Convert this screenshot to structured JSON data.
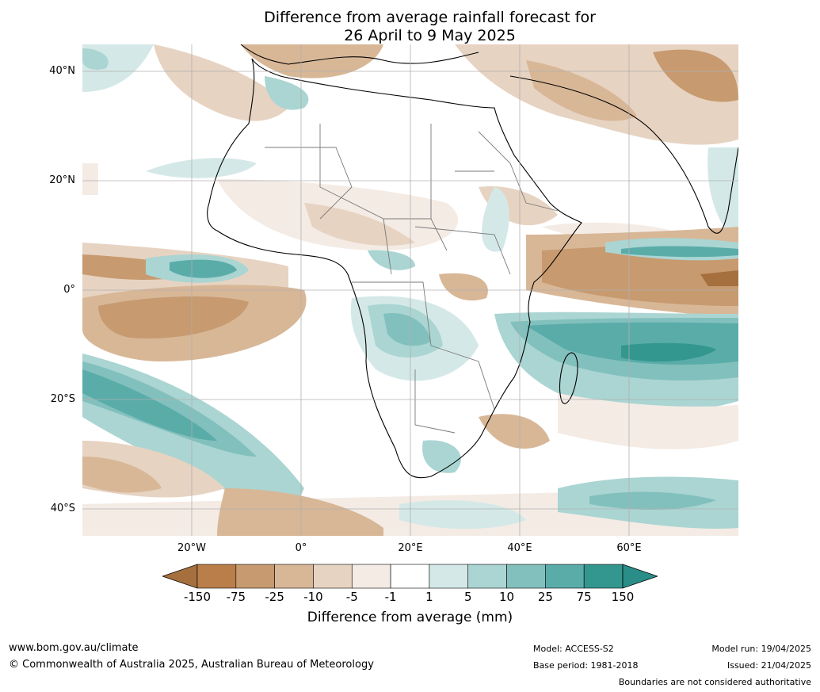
{
  "title": {
    "line1": "Difference from average rainfall forecast for",
    "line2": "26 April to 9 May 2025"
  },
  "map": {
    "lat_labels": [
      "40°N",
      "20°N",
      "0°",
      "20°S",
      "40°S"
    ],
    "lon_labels": [
      "20°W",
      "0°",
      "20°E",
      "40°E",
      "60°E"
    ],
    "extent": {
      "lon": [
        -40,
        80
      ],
      "lat": [
        -45,
        45
      ]
    }
  },
  "colorbar": {
    "ticks": [
      "-150",
      "-75",
      "-25",
      "-10",
      "-5",
      "-1",
      "1",
      "5",
      "10",
      "25",
      "75",
      "150"
    ],
    "colors": [
      "#a5703e",
      "#b97e4a",
      "#c79a6f",
      "#d8b797",
      "#e7d3c2",
      "#f4ebe5",
      "#ffffff",
      "#d4e9e7",
      "#aad5d2",
      "#82c0bd",
      "#5aaca9",
      "#34978f",
      "#2a8d87"
    ],
    "label": "Difference from average (mm)"
  },
  "footer": {
    "website": "www.bom.gov.au/climate",
    "copyright": "© Commonwealth of Australia 2025, Australian Bureau of Meteorology",
    "model": "Model: ACCESS-S2",
    "base_period": "Base period: 1981-2018",
    "model_run": "Model run: 19/04/2025",
    "issued": "Issued: 21/04/2025",
    "boundaries_note": "Boundaries are not considered authoritative"
  }
}
